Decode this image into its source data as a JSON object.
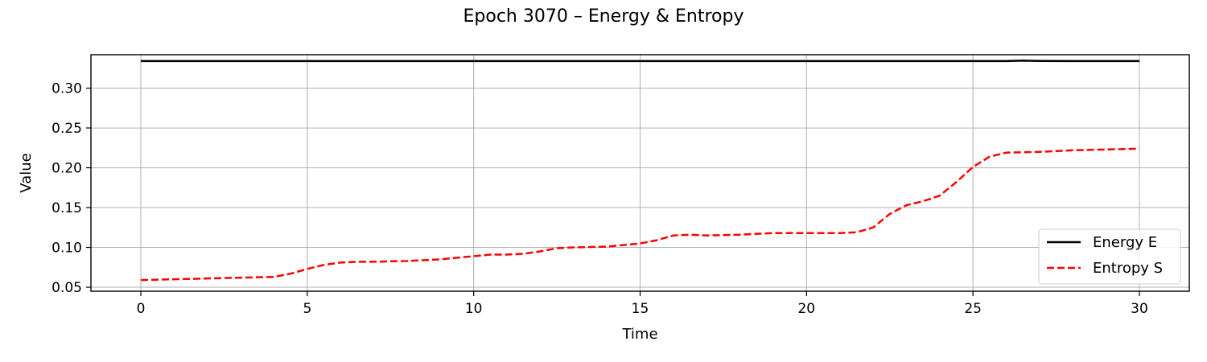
{
  "chart_data": {
    "type": "line",
    "title": "Epoch 3070 – Energy & Entropy",
    "xlabel": "Time",
    "ylabel": "Value",
    "xlim": [
      -1.5,
      31.5
    ],
    "ylim": [
      0.045,
      0.342
    ],
    "xticks": [
      0,
      5,
      10,
      15,
      20,
      25,
      30
    ],
    "yticks": [
      0.05,
      0.1,
      0.15,
      0.2,
      0.25,
      0.3
    ],
    "xtick_labels": [
      "0",
      "5",
      "10",
      "15",
      "20",
      "25",
      "30"
    ],
    "ytick_labels": [
      "0.05",
      "0.10",
      "0.15",
      "0.20",
      "0.25",
      "0.30"
    ],
    "grid": true,
    "legend_position": "lower-right",
    "series": [
      {
        "name": "Energy E",
        "color": "#000000",
        "style": "solid",
        "x": [
          0,
          2,
          4,
          6,
          8,
          10,
          12,
          14,
          16,
          18,
          20,
          22,
          24,
          25,
          26,
          26.5,
          27,
          28,
          29,
          30
        ],
        "y": [
          0.334,
          0.334,
          0.334,
          0.334,
          0.334,
          0.334,
          0.334,
          0.334,
          0.334,
          0.334,
          0.334,
          0.334,
          0.334,
          0.334,
          0.334,
          0.3345,
          0.3342,
          0.334,
          0.334,
          0.334
        ]
      },
      {
        "name": "Entropy S",
        "color": "#ff0000",
        "style": "dashed",
        "x": [
          0,
          0.5,
          1,
          2,
          3,
          3.5,
          4,
          4.5,
          5,
          5.5,
          6,
          6.5,
          7,
          8,
          9,
          10,
          10.5,
          11,
          11.5,
          12,
          12.5,
          13,
          14,
          15,
          15.5,
          16,
          16.5,
          17,
          18,
          18.5,
          19,
          20,
          21,
          21.5,
          22,
          22.5,
          23,
          23.5,
          24,
          24.5,
          25,
          25.5,
          26,
          27,
          28,
          29,
          30
        ],
        "y": [
          0.059,
          0.0595,
          0.06,
          0.061,
          0.062,
          0.0625,
          0.063,
          0.067,
          0.073,
          0.078,
          0.081,
          0.082,
          0.082,
          0.083,
          0.085,
          0.089,
          0.091,
          0.091,
          0.092,
          0.095,
          0.099,
          0.1,
          0.101,
          0.105,
          0.109,
          0.115,
          0.116,
          0.115,
          0.116,
          0.117,
          0.118,
          0.118,
          0.118,
          0.119,
          0.125,
          0.142,
          0.153,
          0.158,
          0.165,
          0.182,
          0.201,
          0.214,
          0.219,
          0.22,
          0.222,
          0.223,
          0.224
        ]
      }
    ]
  }
}
